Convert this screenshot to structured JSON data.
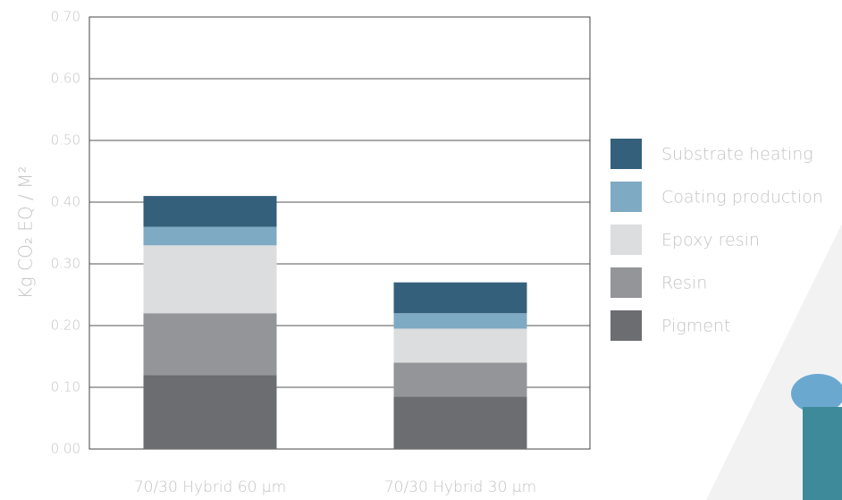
{
  "chart_data": {
    "type": "stacked_bar",
    "ylabel": "Kg CO₂ EQ / M²",
    "categories": [
      "70/30 Hybrid 60 µm",
      "70/30 Hybrid 30 µm"
    ],
    "series": [
      {
        "name": "Pigment",
        "color": "#6c6d70",
        "values": [
          0.12,
          0.085
        ]
      },
      {
        "name": "Resin",
        "color": "#939598",
        "values": [
          0.1,
          0.055
        ]
      },
      {
        "name": "Epoxy resin",
        "color": "#dcdddf",
        "values": [
          0.11,
          0.055
        ]
      },
      {
        "name": "Coating production",
        "color": "#7eaac3",
        "values": [
          0.03,
          0.025
        ]
      },
      {
        "name": "Substrate heating",
        "color": "#35607c",
        "values": [
          0.05,
          0.05
        ]
      }
    ],
    "ylim": [
      0,
      0.7
    ],
    "yticks": [
      {
        "value": 0,
        "label": "0.00"
      },
      {
        "value": 0.1,
        "label": "0.10"
      },
      {
        "value": 0.2,
        "label": "0.20"
      },
      {
        "value": 0.3,
        "label": "0.30"
      },
      {
        "value": 0.4,
        "label": "0.40"
      },
      {
        "value": 0.5,
        "label": "0.50"
      },
      {
        "value": 0.6,
        "label": "0.60"
      },
      {
        "value": 0.7,
        "label": "0.70"
      }
    ],
    "grid": true
  }
}
